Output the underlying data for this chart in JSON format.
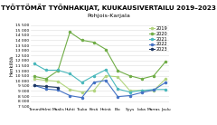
{
  "title": "TYÖTTÖMÄT TYÖNHAKIJAT, KUUKAUSIVERTAILU 2019–2023",
  "subtitle": "Pohjois-Karjala",
  "ylabel": "Henkilöä",
  "months": [
    "Tammi",
    "Helmi",
    "Maalis",
    "Huhti",
    "Touko",
    "Kesä",
    "Heinä",
    "Elo",
    "Syys",
    "Loka",
    "Marras",
    "Joulu"
  ],
  "series": {
    "2019": [
      10200,
      10050,
      9950,
      9150,
      8900,
      9050,
      10500,
      10400,
      9050,
      9050,
      9050,
      10200
    ],
    "2020": [
      10450,
      10200,
      11000,
      14800,
      14000,
      13800,
      13100,
      11000,
      10500,
      10200,
      10500,
      11900
    ],
    "2021": [
      11700,
      11050,
      11050,
      10700,
      9850,
      10500,
      11100,
      9200,
      8900,
      9050,
      9150,
      9150
    ],
    "2022": [
      9550,
      9200,
      9100,
      8550,
      8350,
      9850,
      10050,
      8450,
      8550,
      8850,
      9100,
      9850
    ],
    "2023": [
      9550,
      9450,
      9350,
      null,
      null,
      null,
      null,
      null,
      null,
      null,
      null,
      null
    ]
  },
  "colors": {
    "2019": "#b2d47e",
    "2020": "#70ad47",
    "2021": "#4ab8bc",
    "2022": "#4472c4",
    "2023": "#1f3864"
  },
  "ylim": [
    7500,
    15500
  ],
  "yticks": [
    7500,
    8000,
    8500,
    9000,
    9500,
    10000,
    10500,
    11000,
    11500,
    12000,
    12500,
    13000,
    13500,
    14000,
    14500,
    15000,
    15500
  ],
  "plot_bg": "#ffffff",
  "fig_bg": "#ffffff",
  "title_fontsize": 5.2,
  "label_fontsize": 3.8,
  "tick_fontsize": 3.2,
  "legend_fontsize": 3.6,
  "linewidth": 0.8,
  "markersize": 1.5
}
